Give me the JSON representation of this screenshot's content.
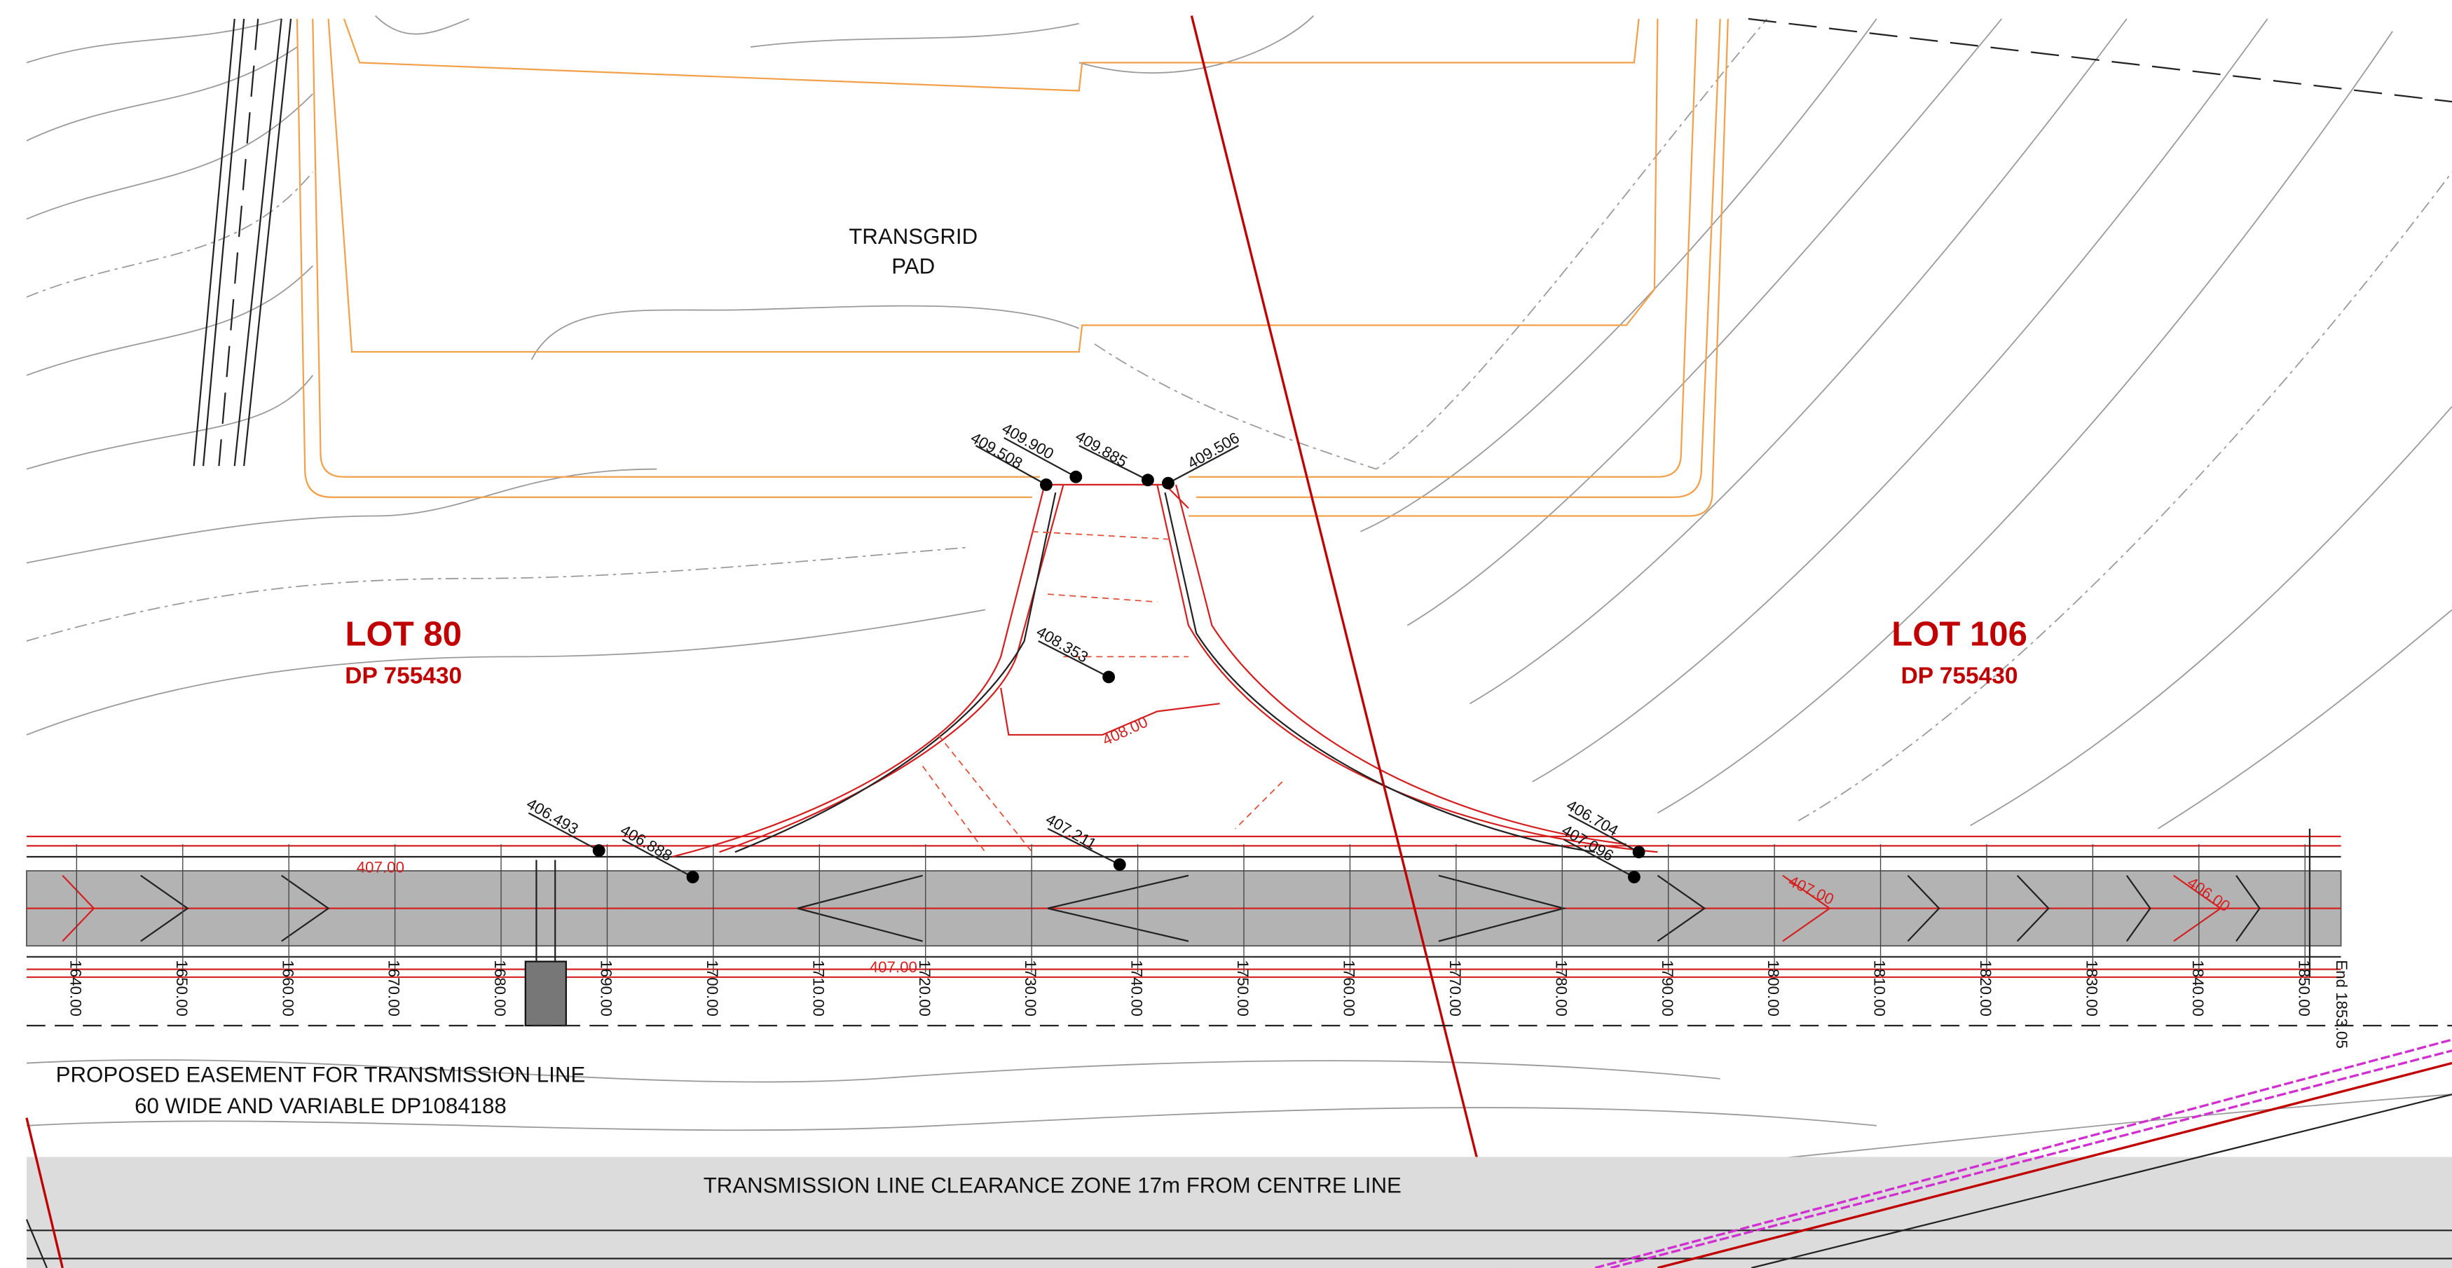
{
  "pad": [
    "TRANSGRID",
    "PAD"
  ],
  "lots": [
    {
      "name": "LOT 80",
      "dp": "DP 755430"
    },
    {
      "name": "LOT 106",
      "dp": "DP 755430"
    }
  ],
  "levels": [
    "409.508",
    "409.900",
    "409.885",
    "409.506",
    "408.353",
    "406.493",
    "406.888",
    "407.211",
    "406.704",
    "407.096"
  ],
  "contour_labels": [
    "407.00",
    "408.00",
    "407.00",
    "407.00",
    "406.00"
  ],
  "chainages": [
    "1640.00",
    "1650.00",
    "1660.00",
    "1670.00",
    "1680.00",
    "1690.00",
    "1700.00",
    "1710.00",
    "1720.00",
    "1730.00",
    "1740.00",
    "1750.00",
    "1760.00",
    "1770.00",
    "1780.00",
    "1790.00",
    "1800.00",
    "1810.00",
    "1820.00",
    "1830.00",
    "1840.00",
    "1850.00"
  ],
  "chainage_end": "End 1853.05",
  "easement": [
    "PROPOSED EASEMENT FOR TRANSMISSION LINE",
    "60 WIDE AND VARIABLE DP1084188"
  ],
  "clearance": "TRANSMISSION LINE CLEARANCE ZONE 17m FROM CENTRE LINE"
}
